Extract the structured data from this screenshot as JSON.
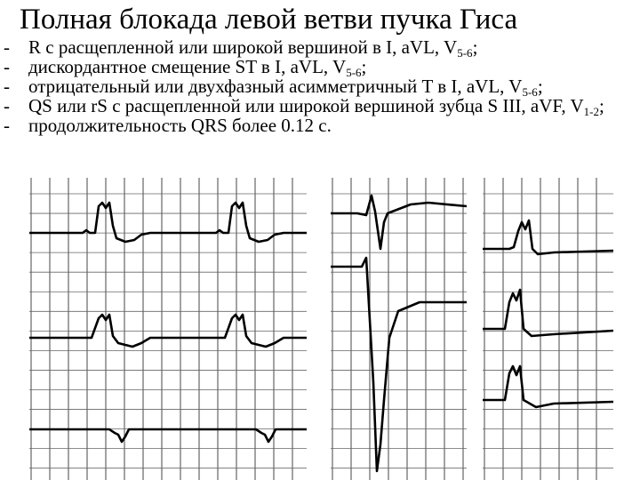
{
  "slide": {
    "title": "Полная блокада левой ветви пучка Гиса",
    "bullets": [
      {
        "text": "R с расщепленной или широкой вершиной в I, aVL, V",
        "sub": "5-6",
        "tail": ";"
      },
      {
        "text": "дискордантное смещение ST в I, aVL, V",
        "sub": "5-6",
        "tail": ";"
      },
      {
        "text": "отрицательный или двухфазный асимметричный T в I, aVL, V",
        "sub": "5-6",
        "tail": ";"
      },
      {
        "text": "QS  или rS с расщепленной или широкой вершиной зубца S III, aVF, V",
        "sub": "1-2",
        "tail": ";"
      },
      {
        "text": "продолжительность QRS более 0.12 с.",
        "sub": "",
        "tail": ""
      }
    ],
    "bullet_marker": "-"
  },
  "ecg_images": [
    {
      "label": "ecg-limb-leads"
    },
    {
      "label": "ecg-v1-v2"
    },
    {
      "label": "ecg-v5-v6"
    }
  ]
}
